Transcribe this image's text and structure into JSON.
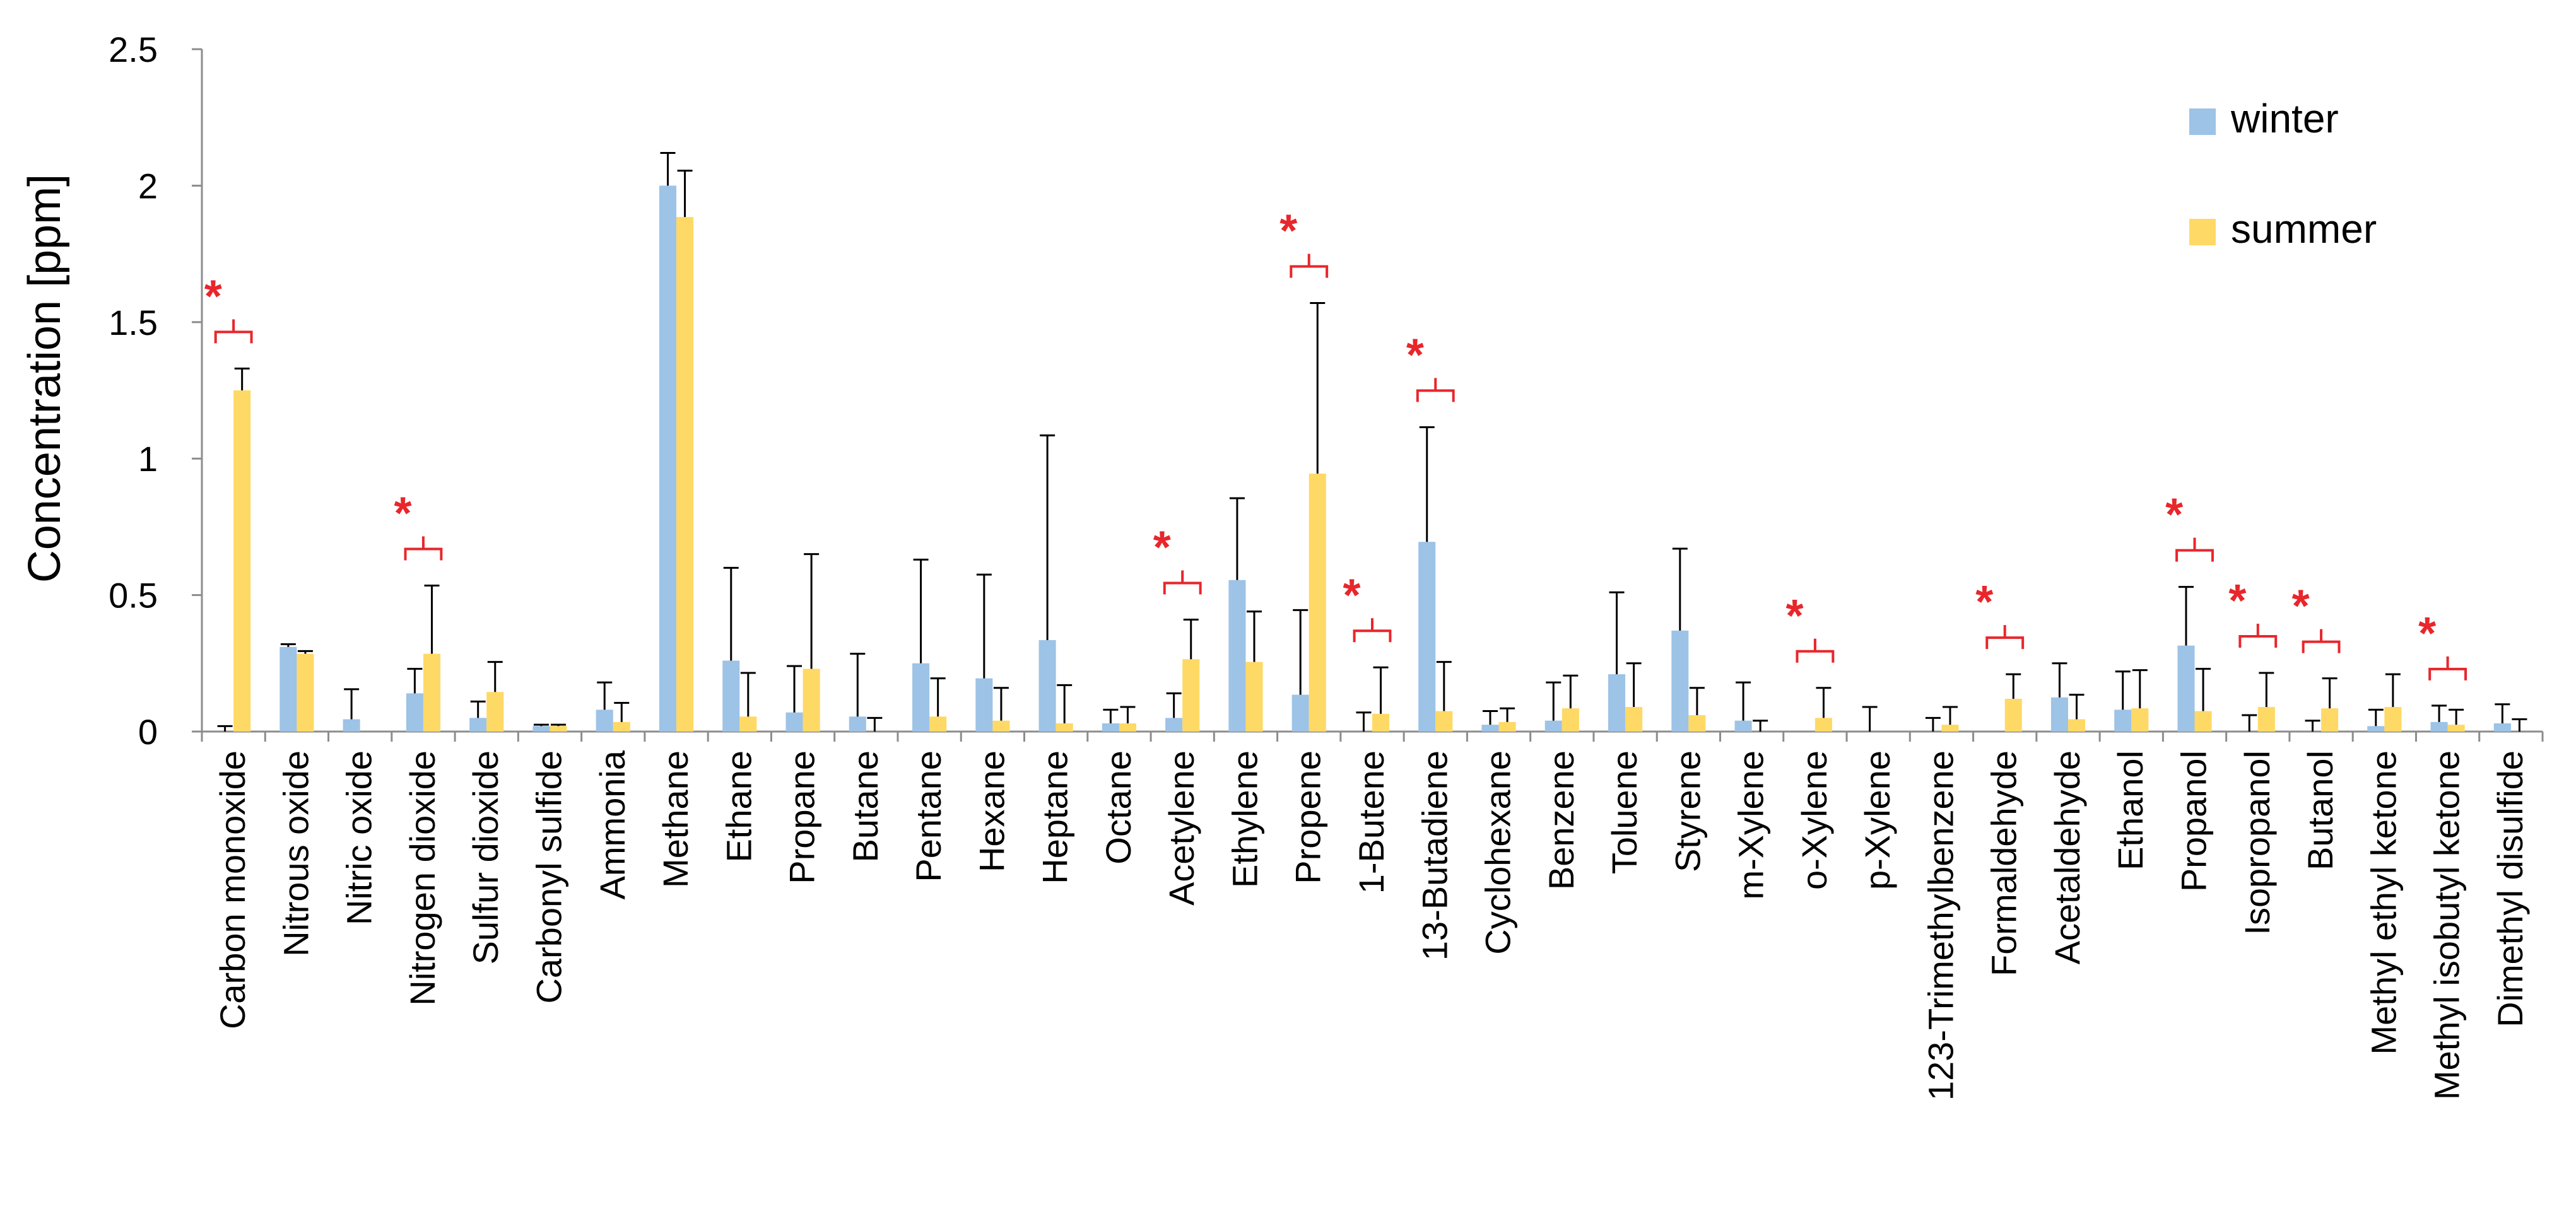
{
  "chart_data": {
    "type": "bar",
    "title": "",
    "xlabel": "",
    "ylabel": "Concentration [ppm]",
    "ylim": [
      0,
      2.5
    ],
    "yticks": [
      "0",
      "0.5",
      "1",
      "1.5",
      "2",
      "2.5"
    ],
    "ytick_values": [
      0,
      0.5,
      1,
      1.5,
      2,
      2.5
    ],
    "legend_position": "top-right",
    "categories": [
      "Carbon monoxide",
      "Nitrous oxide",
      "Nitric oxide",
      "Nitrogen dioxide",
      "Sulfur dioxide",
      "Carbonyl sulfide",
      "Ammonia",
      "Methane",
      "Ethane",
      "Propane",
      "Butane",
      "Pentane",
      "Hexane",
      "Heptane",
      "Octane",
      "Acetylene",
      "Ethylene",
      "Propene",
      "1-Butene",
      "13-Butadiene",
      "Cyclohexane",
      "Benzene",
      "Toluene",
      "Styrene",
      "m-Xylene",
      "o-Xylene",
      "p-Xylene",
      "123-Trimethylbenzene",
      "Formaldehyde",
      "Acetaldehyde",
      "Ethanol",
      "Propanol",
      "Isopropanol",
      "Butanol",
      "Methyl ethyl ketone",
      "Methyl isobutyl ketone",
      "Dimethyl disulfide"
    ],
    "series": [
      {
        "name": "winter",
        "color": "#9dc3e6",
        "values": [
          0.0,
          0.31,
          0.045,
          0.14,
          0.05,
          0.02,
          0.08,
          2.0,
          0.26,
          0.07,
          0.055,
          0.25,
          0.195,
          0.335,
          0.03,
          0.05,
          0.555,
          0.135,
          0.0,
          0.695,
          0.025,
          0.04,
          0.21,
          0.37,
          0.04,
          0.0,
          0.0,
          0.0,
          0.0,
          0.125,
          0.08,
          0.315,
          0.0,
          0.0,
          0.02,
          0.035,
          0.03
        ],
        "errors": [
          0.02,
          0.01,
          0.11,
          0.09,
          0.06,
          0.005,
          0.1,
          0.12,
          0.34,
          0.17,
          0.23,
          0.38,
          0.38,
          0.75,
          0.05,
          0.09,
          0.3,
          0.31,
          0.07,
          0.42,
          0.05,
          0.14,
          0.3,
          0.3,
          0.14,
          0.0,
          0.09,
          0.05,
          0.0,
          0.125,
          0.14,
          0.215,
          0.06,
          0.04,
          0.06,
          0.06,
          0.07
        ]
      },
      {
        "name": "summer",
        "color": "#ffd966",
        "values": [
          1.25,
          0.285,
          0.0,
          0.285,
          0.145,
          0.02,
          0.035,
          1.885,
          0.055,
          0.23,
          0.0,
          0.055,
          0.04,
          0.03,
          0.03,
          0.265,
          0.255,
          0.945,
          0.065,
          0.075,
          0.035,
          0.085,
          0.09,
          0.06,
          0.0,
          0.05,
          0.0,
          0.025,
          0.12,
          0.045,
          0.085,
          0.075,
          0.09,
          0.085,
          0.09,
          0.025,
          0.0
        ],
        "errors": [
          0.08,
          0.01,
          0.0,
          0.25,
          0.11,
          0.005,
          0.07,
          0.17,
          0.16,
          0.42,
          0.05,
          0.14,
          0.12,
          0.14,
          0.06,
          0.145,
          0.185,
          0.625,
          0.17,
          0.18,
          0.05,
          0.12,
          0.16,
          0.1,
          0.04,
          0.11,
          0.0,
          0.065,
          0.09,
          0.09,
          0.14,
          0.155,
          0.125,
          0.11,
          0.12,
          0.055,
          0.045
        ]
      }
    ],
    "significance": [
      {
        "category": "Carbon monoxide",
        "label": "*"
      },
      {
        "category": "Nitrogen dioxide",
        "label": "*"
      },
      {
        "category": "Acetylene",
        "label": "*"
      },
      {
        "category": "Propene",
        "label": "*"
      },
      {
        "category": "1-Butene",
        "label": "*"
      },
      {
        "category": "13-Butadiene",
        "label": "*"
      },
      {
        "category": "o-Xylene",
        "label": "*"
      },
      {
        "category": "Formaldehyde",
        "label": "*"
      },
      {
        "category": "Propanol",
        "label": "*"
      },
      {
        "category": "Isopropanol",
        "label": "*"
      },
      {
        "category": "Butanol",
        "label": "*"
      },
      {
        "category": "Methyl isobutyl ketone",
        "label": "*"
      }
    ]
  }
}
